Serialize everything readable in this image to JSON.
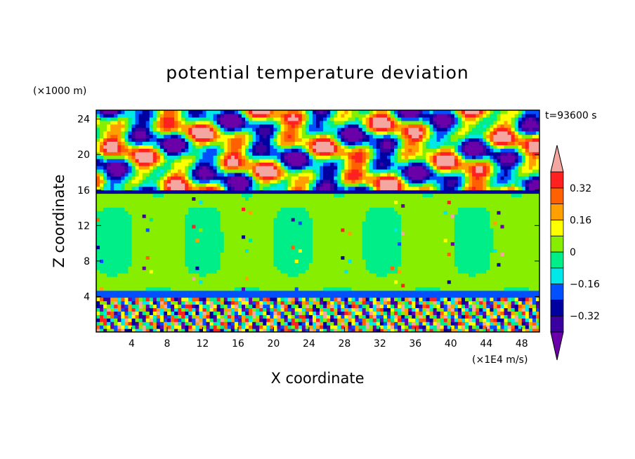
{
  "chart_data": {
    "type": "heatmap",
    "title": "potential temperature deviation",
    "time_label": "t=93600 s",
    "xlabel": "X coordinate",
    "ylabel": "Z coordinate",
    "x_unit": "(×1E4 m/s)",
    "y_unit": "(×1000 m)",
    "xlim": [
      0,
      50
    ],
    "ylim": [
      0,
      25
    ],
    "x_ticks": [
      4,
      8,
      12,
      16,
      20,
      24,
      28,
      32,
      36,
      40,
      44,
      48
    ],
    "y_ticks": [
      4,
      8,
      12,
      16,
      20,
      24
    ],
    "colorbar": {
      "levels": [
        -0.4,
        -0.32,
        -0.24,
        -0.16,
        -0.08,
        0,
        0.08,
        0.16,
        0.24,
        0.32,
        0.4
      ],
      "tick_labels": [
        "0.32",
        "0.16",
        "0",
        "−0.16",
        "−0.32"
      ],
      "tick_values": [
        0.32,
        0.16,
        0,
        -0.16,
        -0.32
      ],
      "colors": [
        "#3a00a0",
        "#0000a0",
        "#0050ff",
        "#00e8e8",
        "#00ee88",
        "#88ee00",
        "#ffff00",
        "#ffa000",
        "#ff6000",
        "#ff2020"
      ],
      "under_color": "#6a00a8",
      "over_color": "#f4a6a0"
    },
    "regions": [
      {
        "name": "upper layer",
        "z_range": [
          16,
          25
        ],
        "dominant": [
          "#6a00a8",
          "#f4a6a0"
        ],
        "description_values": [
          -0.4,
          0.4
        ]
      },
      {
        "name": "middle layer",
        "z_range": [
          4.5,
          16
        ],
        "dominant": [
          "#00ee88",
          "#88ee00"
        ],
        "description_values": [
          -0.04,
          0.04
        ]
      },
      {
        "name": "lower layer",
        "z_range": [
          0,
          4.5
        ],
        "dominant": [
          "#6a00a8",
          "#00e8e8",
          "#ffff00",
          "#ff6000"
        ],
        "description_values": [
          -0.4,
          0.4
        ]
      }
    ]
  }
}
